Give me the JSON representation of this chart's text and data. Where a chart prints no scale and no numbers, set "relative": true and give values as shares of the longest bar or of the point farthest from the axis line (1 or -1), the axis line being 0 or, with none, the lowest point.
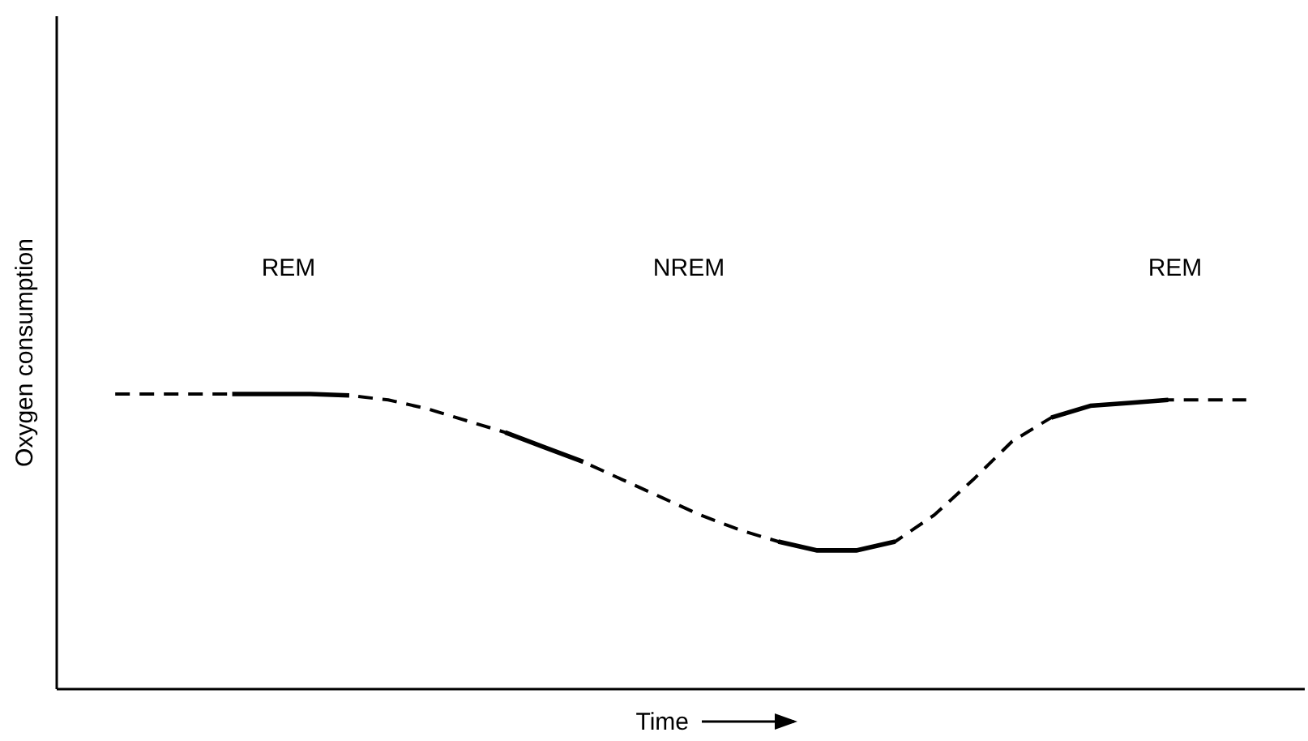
{
  "chart_data": {
    "type": "line",
    "relative": true,
    "xlabel": "Time",
    "ylabel": "Oxygen consumption",
    "annotations": [
      "REM",
      "NREM",
      "REM"
    ],
    "categories": [
      null,
      null,
      null,
      null,
      null,
      null,
      null,
      null,
      null,
      null,
      null,
      null,
      null,
      null,
      null,
      null,
      null,
      null,
      null,
      null,
      null,
      null,
      null,
      null,
      null,
      null,
      null,
      null,
      null,
      null,
      null,
      null
    ],
    "series": [
      {
        "color": "#000000",
        "line_style": "dashed",
        "values": [
          null,
          1.0,
          1.0,
          1.0,
          1.0,
          1.0,
          1.0,
          0.995,
          0.98,
          0.95,
          0.91,
          0.87,
          0.82,
          0.77,
          0.71,
          0.65,
          0.59,
          0.54,
          0.5,
          0.47,
          0.47,
          0.5,
          0.59,
          0.71,
          0.84,
          0.92,
          0.96,
          0.97,
          0.98,
          0.98,
          0.98,
          null
        ]
      },
      {
        "color": "#000000",
        "line_style": "solid",
        "values": [
          null,
          null,
          null,
          null,
          1.0,
          1.0,
          1.0,
          0.995,
          null,
          null,
          null,
          0.87,
          0.82,
          0.77,
          null,
          null,
          null,
          null,
          0.5,
          0.47,
          0.47,
          0.5,
          null,
          null,
          null,
          0.92,
          0.96,
          0.97,
          0.98,
          null,
          null,
          null
        ]
      }
    ]
  }
}
